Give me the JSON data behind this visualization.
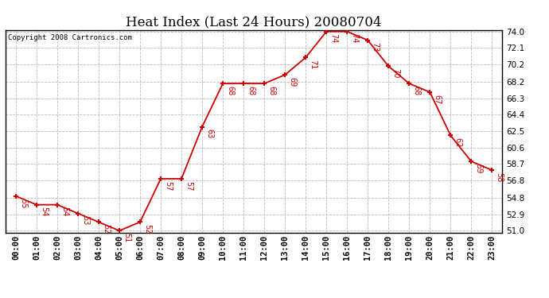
{
  "title": "Heat Index (Last 24 Hours) 20080704",
  "copyright": "Copyright 2008 Cartronics.com",
  "hours": [
    "00:00",
    "01:00",
    "02:00",
    "03:00",
    "04:00",
    "05:00",
    "06:00",
    "07:00",
    "08:00",
    "09:00",
    "10:00",
    "11:00",
    "12:00",
    "13:00",
    "14:00",
    "15:00",
    "16:00",
    "17:00",
    "18:00",
    "19:00",
    "20:00",
    "21:00",
    "22:00",
    "23:00"
  ],
  "values": [
    55,
    54,
    54,
    53,
    52,
    51,
    52,
    57,
    57,
    63,
    68,
    68,
    68,
    69,
    71,
    74,
    74,
    73,
    70,
    68,
    67,
    62,
    59,
    58
  ],
  "ylim_min": 51.0,
  "ylim_max": 74.0,
  "yticks": [
    51.0,
    52.9,
    54.8,
    56.8,
    58.7,
    60.6,
    62.5,
    64.4,
    66.3,
    68.2,
    70.2,
    72.1,
    74.0
  ],
  "line_color": "#cc0000",
  "marker_color": "#cc0000",
  "bg_color": "#ffffff",
  "grid_color": "#bbbbbb",
  "title_fontsize": 12,
  "label_fontsize": 7.5,
  "annot_fontsize": 7
}
